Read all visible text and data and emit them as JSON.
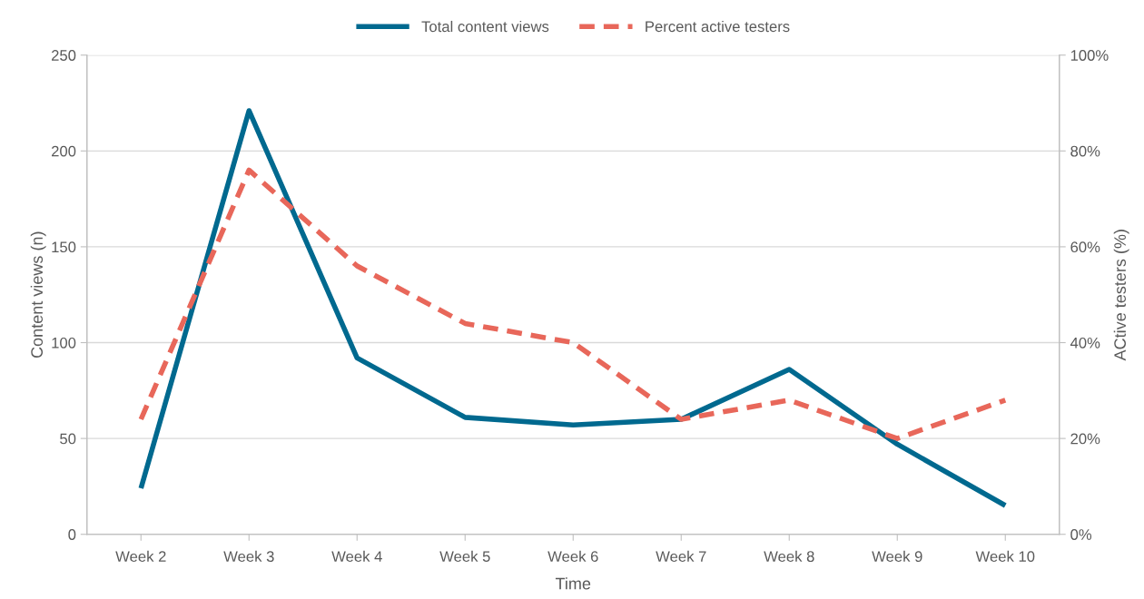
{
  "chart_data": {
    "type": "line",
    "xlabel": "Time",
    "ylabel": "Content views (n)",
    "y2label": "ACtive testers (%)",
    "categories": [
      "Week 2",
      "Week 3",
      "Week 4",
      "Week 5",
      "Week 6",
      "Week 7",
      "Week 8",
      "Week 9",
      "Week 10"
    ],
    "series": [
      {
        "name": "Total content views",
        "color": "#00698f",
        "line_style": "solid",
        "values": [
          24,
          221,
          92,
          61,
          57,
          60,
          86,
          47,
          15
        ]
      },
      {
        "name": "Percent active testers",
        "color": "#e8675a",
        "line_style": "dashed",
        "axis": "y2",
        "values": [
          24,
          76,
          56,
          44,
          40,
          24,
          28,
          20,
          28
        ]
      }
    ],
    "ylim": [
      0,
      250
    ],
    "yticks": [
      0,
      50,
      100,
      150,
      200,
      250
    ],
    "y2lim": [
      0,
      100
    ],
    "y2ticks": [
      {
        "value": 0,
        "label": "0%"
      },
      {
        "value": 20,
        "label": "20%"
      },
      {
        "value": 40,
        "label": "40%"
      },
      {
        "value": 60,
        "label": "60%"
      },
      {
        "value": 80,
        "label": "80%"
      },
      {
        "value": 100,
        "label": "100%"
      }
    ],
    "grid": "y",
    "legend": "top",
    "marker": "none"
  }
}
